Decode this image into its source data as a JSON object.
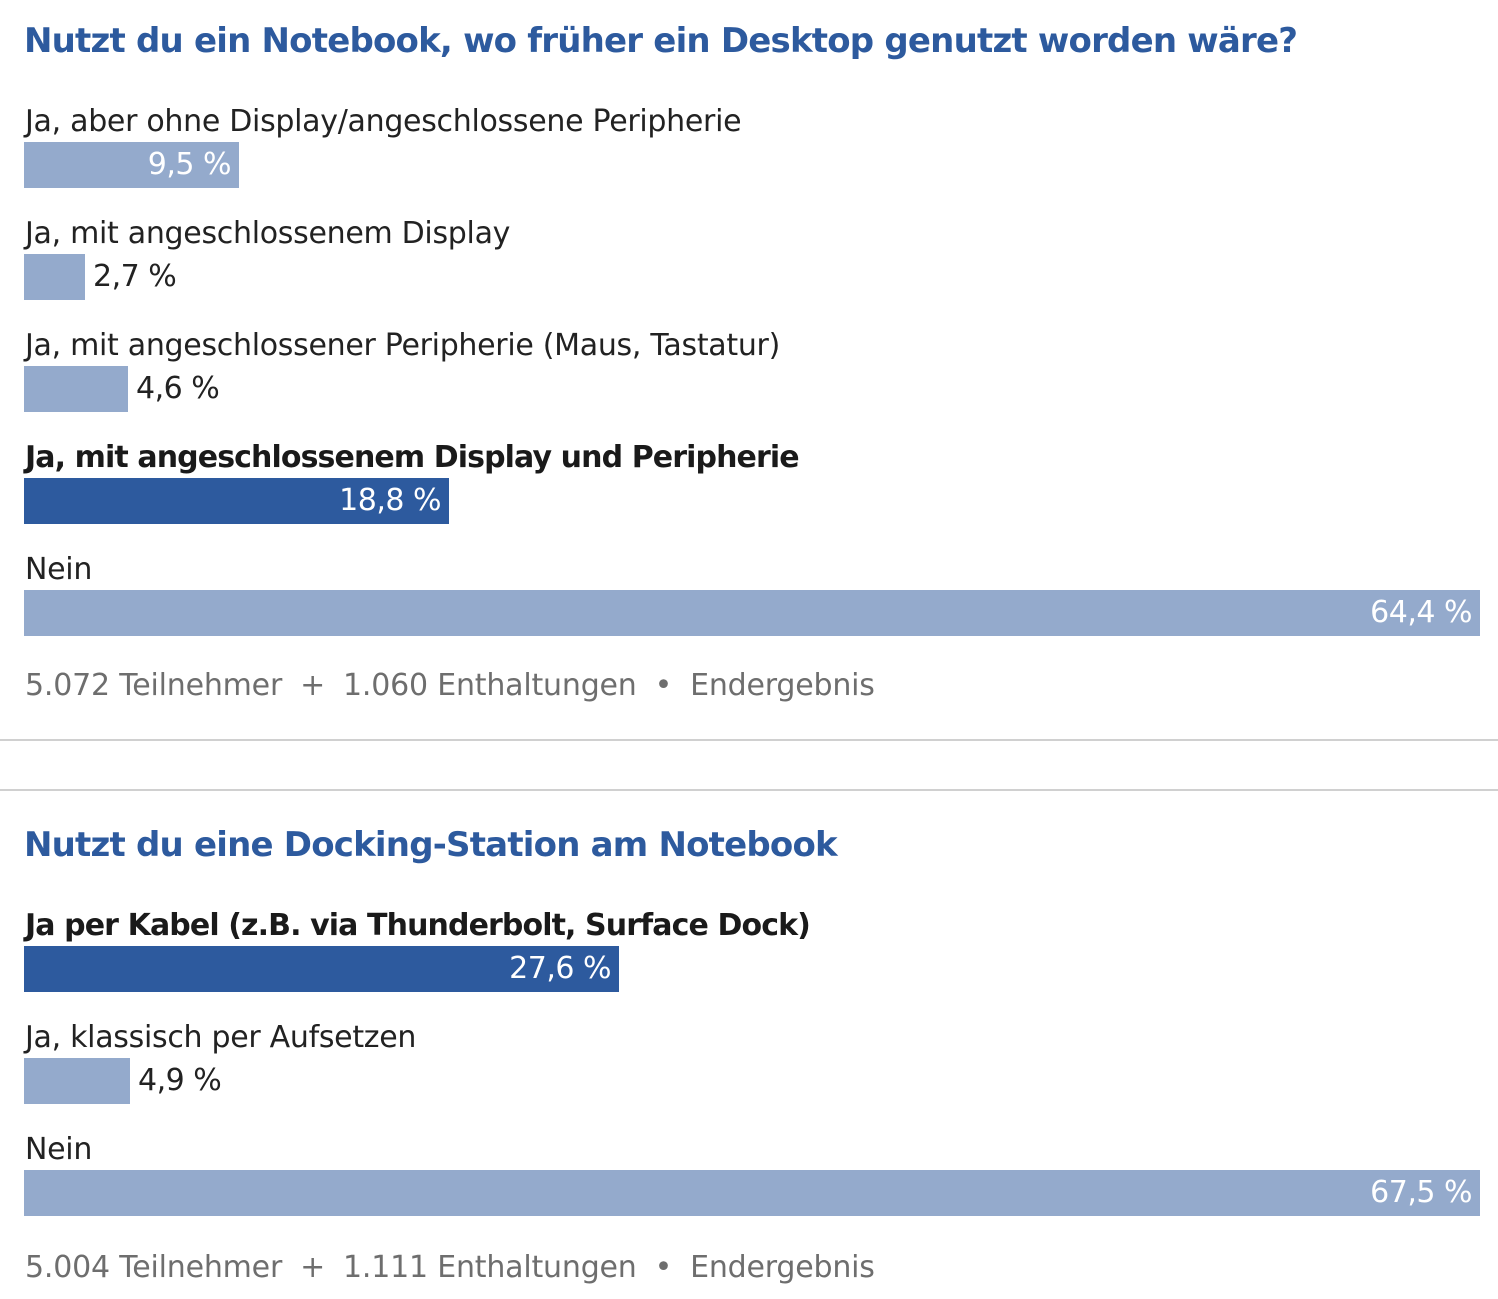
{
  "chart_data": [
    {
      "type": "bar",
      "orientation": "horizontal",
      "title": "Nutzt du ein Notebook, wo früher ein Desktop genutzt worden wäre?",
      "categories": [
        "Ja, aber ohne Display/angeschlossene Peripherie",
        "Ja, mit angeschlossenem Display",
        "Ja, mit angeschlossener Peripherie (Maus, Tastatur)",
        "Ja, mit angeschlossenem Display und Peripherie",
        "Nein"
      ],
      "values": [
        9.5,
        2.7,
        4.6,
        18.8,
        64.4
      ],
      "value_labels": [
        "9,5 %",
        "2,7 %",
        "4,6 %",
        "18,8 %",
        "64,4 %"
      ],
      "highlighted": [
        false,
        false,
        false,
        true,
        false
      ],
      "unit": "%",
      "xlim": [
        0,
        64.4
      ],
      "footer": {
        "participants": "5.072 Teilnehmer",
        "plus": "+",
        "abstentions": "1.060 Enthaltungen",
        "dot": "•",
        "status": "Endergebnis"
      }
    },
    {
      "type": "bar",
      "orientation": "horizontal",
      "title": "Nutzt du eine Docking-Station am Notebook",
      "categories": [
        "Ja per Kabel (z.B. via Thunderbolt, Surface Dock)",
        "Ja, klassisch per Aufsetzen",
        "Nein"
      ],
      "values": [
        27.6,
        4.9,
        67.5
      ],
      "value_labels": [
        "27,6 %",
        "4,9 %",
        "67,5 %"
      ],
      "highlighted": [
        true,
        false,
        false
      ],
      "unit": "%",
      "xlim": [
        0,
        67.5
      ],
      "footer": {
        "participants": "5.004 Teilnehmer",
        "plus": "+",
        "abstentions": "1.111 Enthaltungen",
        "dot": "•",
        "status": "Endergebnis"
      }
    }
  ],
  "colors": {
    "title": "#2d5a9e",
    "bar_default": "#94aacc",
    "bar_winner": "#2d5a9e",
    "footer_text": "#6e6e6e",
    "divider": "#d0d0d0"
  }
}
